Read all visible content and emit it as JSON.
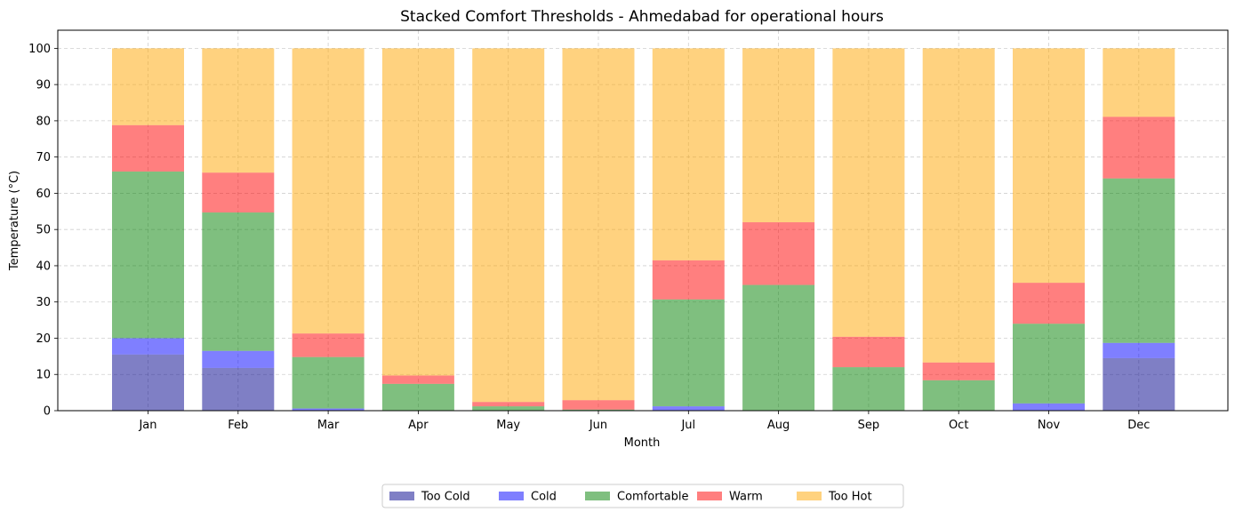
{
  "chart_data": {
    "type": "bar",
    "stacked": true,
    "title": "Stacked Comfort Thresholds - Ahmedabad for operational hours",
    "xlabel": "Month",
    "ylabel": "Temperature (°C)",
    "ylim": [
      0,
      105
    ],
    "yticks": [
      0,
      10,
      20,
      30,
      40,
      50,
      60,
      70,
      80,
      90,
      100
    ],
    "grid": true,
    "legend_position": "bottom-center",
    "categories": [
      "Jan",
      "Feb",
      "Mar",
      "Apr",
      "May",
      "Jun",
      "Jul",
      "Aug",
      "Sep",
      "Oct",
      "Nov",
      "Dec"
    ],
    "series": [
      {
        "name": "Too Cold",
        "color": "#00008b",
        "opacity": 0.5,
        "values": [
          15.5,
          11.8,
          0,
          0,
          0,
          0,
          0,
          0,
          0,
          0,
          0,
          14.5
        ]
      },
      {
        "name": "Cold",
        "color": "#0000ff",
        "opacity": 0.5,
        "values": [
          4.5,
          4.7,
          0.6,
          0,
          0,
          0,
          1.2,
          0,
          0,
          0,
          2.0,
          4.2
        ]
      },
      {
        "name": "Comfortable",
        "color": "#008000",
        "opacity": 0.5,
        "values": [
          46.0,
          38.2,
          14.2,
          7.4,
          1.2,
          0.3,
          29.5,
          34.7,
          12.0,
          8.4,
          22.0,
          45.4
        ]
      },
      {
        "name": "Warm",
        "color": "#ff0000",
        "opacity": 0.5,
        "values": [
          12.8,
          11.0,
          6.5,
          2.3,
          1.2,
          2.6,
          10.8,
          17.3,
          8.4,
          4.9,
          11.3,
          17.0
        ]
      },
      {
        "name": "Too Hot",
        "color": "#ffa500",
        "opacity": 0.5,
        "values": [
          21.2,
          34.3,
          78.7,
          90.3,
          97.6,
          97.1,
          58.5,
          48.0,
          79.6,
          86.7,
          64.7,
          18.9
        ]
      }
    ]
  }
}
